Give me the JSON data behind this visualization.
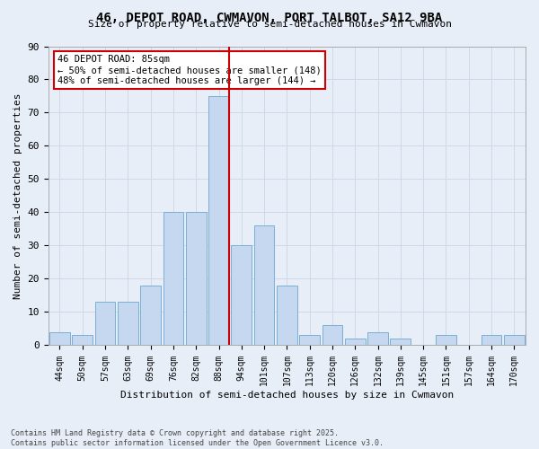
{
  "title": "46, DEPOT ROAD, CWMAVON, PORT TALBOT, SA12 9BA",
  "subtitle": "Size of property relative to semi-detached houses in Cwmavon",
  "xlabel": "Distribution of semi-detached houses by size in Cwmavon",
  "ylabel": "Number of semi-detached properties",
  "categories": [
    "44sqm",
    "50sqm",
    "57sqm",
    "63sqm",
    "69sqm",
    "76sqm",
    "82sqm",
    "88sqm",
    "94sqm",
    "101sqm",
    "107sqm",
    "113sqm",
    "120sqm",
    "126sqm",
    "132sqm",
    "139sqm",
    "145sqm",
    "151sqm",
    "157sqm",
    "164sqm",
    "170sqm"
  ],
  "values": [
    4,
    3,
    13,
    13,
    18,
    40,
    40,
    75,
    30,
    36,
    18,
    3,
    6,
    2,
    4,
    2,
    0,
    3,
    0,
    3,
    3
  ],
  "bar_color": "#c5d8f0",
  "bar_edge_color": "#7aafd4",
  "grid_color": "#d0d8e8",
  "background_color": "#e8eef8",
  "property_sqm": 85,
  "annotation_text": "46 DEPOT ROAD: 85sqm\n← 50% of semi-detached houses are smaller (148)\n48% of semi-detached houses are larger (144) →",
  "annotation_box_color": "#ffffff",
  "annotation_box_edge": "#cc0000",
  "annotation_text_color": "#000000",
  "vline_color": "#cc0000",
  "footer_text": "Contains HM Land Registry data © Crown copyright and database right 2025.\nContains public sector information licensed under the Open Government Licence v3.0.",
  "ylim": [
    0,
    90
  ],
  "yticks": [
    0,
    10,
    20,
    30,
    40,
    50,
    60,
    70,
    80,
    90
  ]
}
